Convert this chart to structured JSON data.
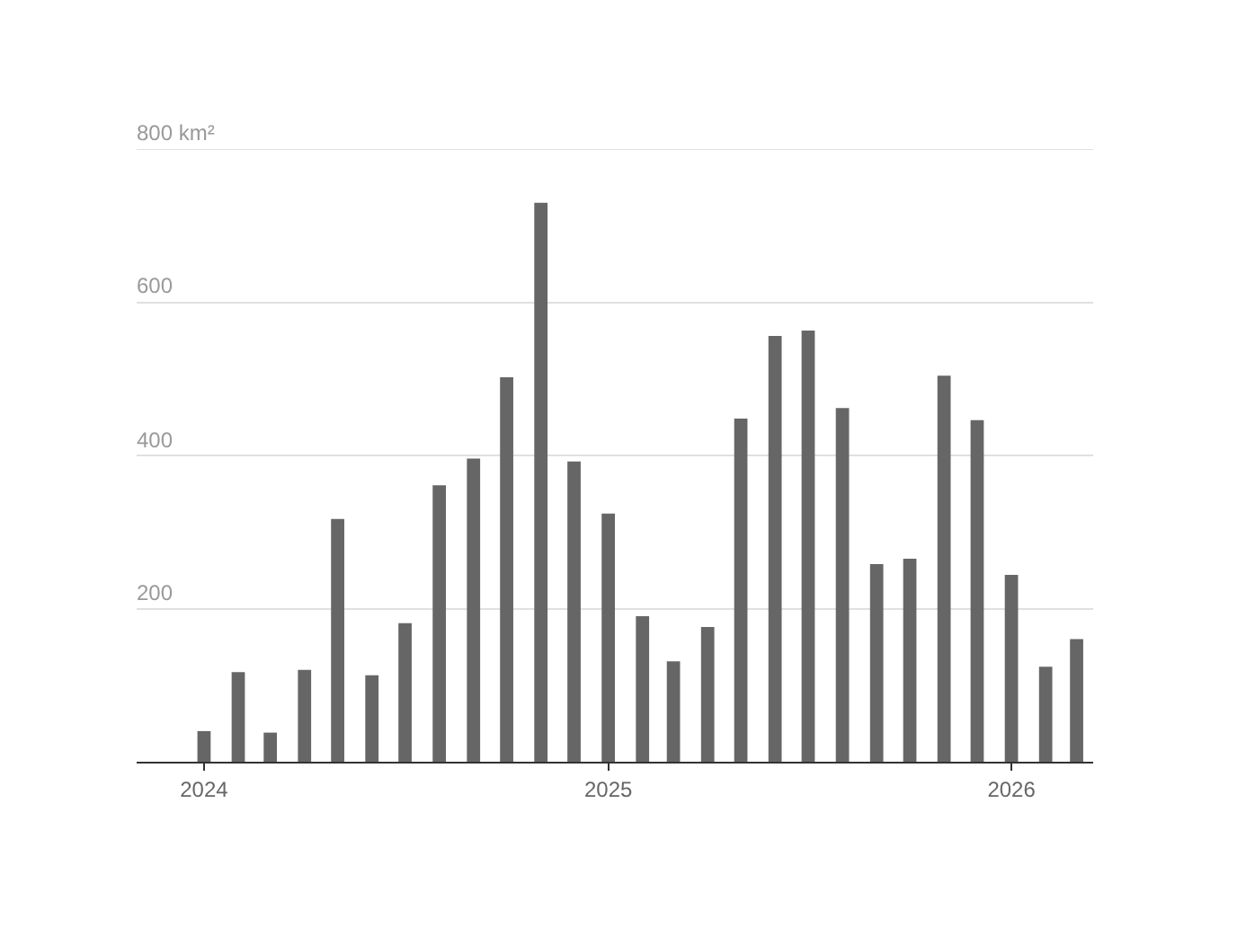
{
  "chart_data": {
    "type": "bar",
    "x": [
      "2024-01",
      "2024-02",
      "2024-03",
      "2024-04",
      "2024-05",
      "2024-06",
      "2024-07",
      "2024-08",
      "2024-09",
      "2024-10",
      "2024-11",
      "2024-12",
      "2025-01",
      "2025-02",
      "2025-03",
      "2025-04",
      "2025-05",
      "2025-06",
      "2025-07",
      "2025-08",
      "2025-09",
      "2025-10",
      "2025-11",
      "2025-12",
      "2026-01",
      "2026-02",
      "2026-03"
    ],
    "values": [
      40,
      117,
      38,
      120,
      317,
      113,
      181,
      361,
      396,
      502,
      730,
      392,
      324,
      190,
      131,
      176,
      448,
      556,
      563,
      462,
      258,
      265,
      504,
      446,
      244,
      124,
      160
    ],
    "color": "#666666",
    "xlim": [
      "2023-11-01",
      "2026-03-16"
    ],
    "xticks": [
      {
        "value": "2024-01-01",
        "label": "2024"
      },
      {
        "value": "2025-01-01",
        "label": "2025"
      },
      {
        "value": "2026-01-01",
        "label": "2026"
      }
    ],
    "ylim": [
      0,
      800
    ],
    "yticks": [
      {
        "value": 0,
        "label": null
      },
      200,
      400,
      600,
      {
        "value": 800,
        "label": "800 km²"
      }
    ],
    "grid": "y",
    "legend": false
  }
}
